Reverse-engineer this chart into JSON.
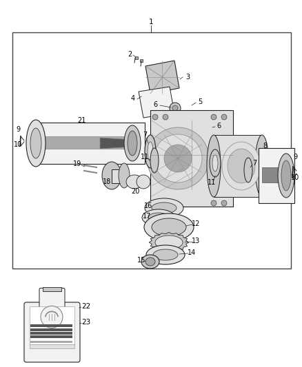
{
  "bg_color": "#ffffff",
  "fig_width": 4.38,
  "fig_height": 5.33,
  "dpi": 100,
  "lc": "#222222",
  "gray1": "#f2f2f2",
  "gray2": "#e0e0e0",
  "gray3": "#c8c8c8",
  "gray4": "#aaaaaa",
  "gray5": "#888888",
  "gray6": "#555555",
  "dark": "#333333",
  "black": "#111111"
}
